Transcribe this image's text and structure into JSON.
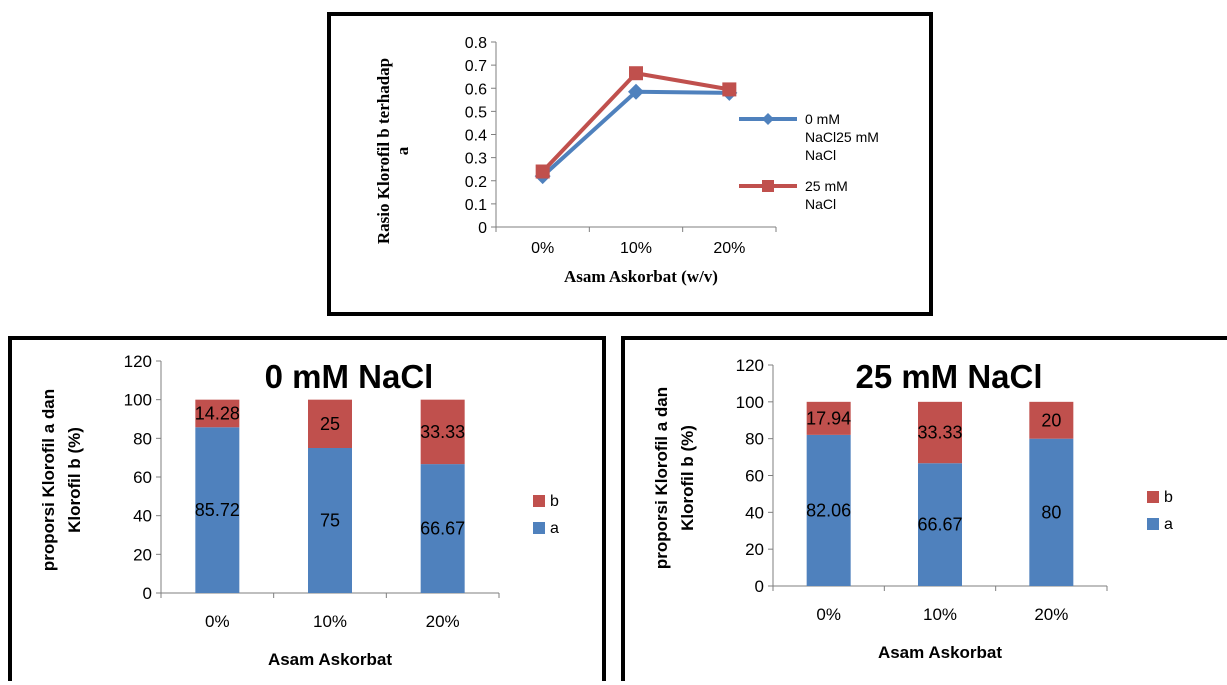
{
  "colors": {
    "a": "#4F81BD",
    "b": "#C0504D",
    "axis": "#7F7F7F",
    "text": "#000000"
  },
  "chart_data": [
    {
      "type": "line",
      "title": "",
      "xlabel": "Asam Askorbat  (w/v)",
      "ylabel_lines": [
        "Rasio Klorofil b terhadap",
        "a"
      ],
      "categories": [
        "0%",
        "10%",
        "20%"
      ],
      "ylim": [
        0,
        0.8
      ],
      "yticks": [
        "0",
        "0.1",
        "0.2",
        "0.3",
        "0.4",
        "0.5",
        "0.6",
        "0.7",
        "0.8"
      ],
      "series": [
        {
          "name_lines": [
            "0 mM",
            "NaCl25 mM",
            "NaCl"
          ],
          "values": [
            0.22,
            0.585,
            0.58
          ],
          "marker": "diamond",
          "color": "#4F81BD"
        },
        {
          "name_lines": [
            "25 mM",
            "NaCl"
          ],
          "values": [
            0.24,
            0.665,
            0.595
          ],
          "marker": "square",
          "color": "#C0504D"
        }
      ],
      "legend": "right"
    },
    {
      "type": "bar",
      "stacked": true,
      "title": "0 mM NaCl",
      "xlabel": "Asam Askorbat",
      "ylabel_lines": [
        "proporsi Klorofil a dan",
        "Klorofil b (%)"
      ],
      "categories": [
        "0%",
        "10%",
        "20%"
      ],
      "ylim": [
        0,
        120
      ],
      "yticks": [
        "0",
        "20",
        "40",
        "60",
        "80",
        "100",
        "120"
      ],
      "series": [
        {
          "name": "a",
          "values": [
            85.72,
            75,
            66.67
          ],
          "labels": [
            "85.72",
            "75",
            "66.67"
          ],
          "color": "#4F81BD"
        },
        {
          "name": "b",
          "values": [
            14.28,
            25,
            33.33
          ],
          "labels": [
            "14.28",
            "25",
            "33.33"
          ],
          "color": "#C0504D"
        }
      ],
      "legend": "right"
    },
    {
      "type": "bar",
      "stacked": true,
      "title": "25 mM NaCl",
      "xlabel": "Asam Askorbat",
      "ylabel_lines": [
        "proporsi Klorofil a dan",
        "Klorofil b (%)"
      ],
      "categories": [
        "0%",
        "10%",
        "20%"
      ],
      "ylim": [
        0,
        120
      ],
      "yticks": [
        "0",
        "20",
        "40",
        "60",
        "80",
        "100",
        "120"
      ],
      "series": [
        {
          "name": "a",
          "values": [
            82.06,
            66.67,
            80
          ],
          "labels": [
            "82.06",
            "66.67",
            "80"
          ],
          "color": "#4F81BD"
        },
        {
          "name": "b",
          "values": [
            17.94,
            33.33,
            20
          ],
          "labels": [
            "17.94",
            "33.33",
            "20"
          ],
          "color": "#C0504D"
        }
      ],
      "legend": "right"
    }
  ]
}
